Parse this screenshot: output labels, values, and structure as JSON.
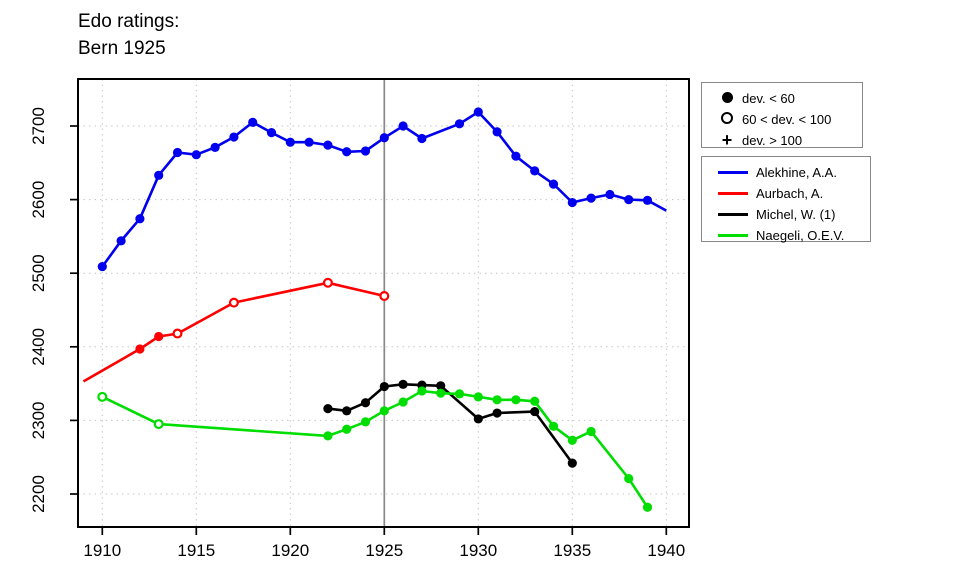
{
  "title_line1": "Edo ratings:",
  "title_line2": "Bern 1925",
  "legend_markers": {
    "items": [
      {
        "symbol": "filled-circle",
        "label": "dev. < 60"
      },
      {
        "symbol": "open-circle",
        "label": "60 < dev. < 100"
      },
      {
        "symbol": "plus",
        "label": "dev. > 100"
      }
    ]
  },
  "legend_players": {
    "items": [
      {
        "label": "Alekhine, A.A.",
        "color": "#0000ee"
      },
      {
        "label": "Aurbach, A.",
        "color": "#ff0000"
      },
      {
        "label": "Michel, W. (1)",
        "color": "#000000"
      },
      {
        "label": "Naegeli, O.E.V.",
        "color": "#00dd00"
      }
    ]
  },
  "chart_data": {
    "type": "line",
    "title": "Edo ratings: Bern 1925",
    "xlabel": "",
    "ylabel": "",
    "x_ticks": [
      1910,
      1915,
      1920,
      1925,
      1930,
      1935,
      1940
    ],
    "y_ticks": [
      2200,
      2300,
      2400,
      2500,
      2600,
      2700
    ],
    "xlim": [
      1908.7,
      1941.2
    ],
    "ylim": [
      2154,
      2763
    ],
    "grid": "dotted",
    "reference_vline_x": 1925,
    "vline_color": "#888888",
    "grid_color": "#c6c6c6",
    "marker_meaning": {
      "filled": "dev. < 60",
      "open": "60 < dev. < 100",
      "plus": "dev. > 100"
    },
    "series": [
      {
        "name": "Alekhine, A.A.",
        "color": "#0000ee",
        "points": [
          {
            "year": 1910,
            "rating": 2509,
            "marker": "filled"
          },
          {
            "year": 1911,
            "rating": 2544,
            "marker": "filled"
          },
          {
            "year": 1912,
            "rating": 2574,
            "marker": "filled"
          },
          {
            "year": 1913,
            "rating": 2633,
            "marker": "filled"
          },
          {
            "year": 1914,
            "rating": 2664,
            "marker": "filled"
          },
          {
            "year": 1915,
            "rating": 2661,
            "marker": "filled"
          },
          {
            "year": 1916,
            "rating": 2671,
            "marker": "filled"
          },
          {
            "year": 1917,
            "rating": 2685,
            "marker": "filled"
          },
          {
            "year": 1918,
            "rating": 2705,
            "marker": "filled"
          },
          {
            "year": 1919,
            "rating": 2691,
            "marker": "filled"
          },
          {
            "year": 1920,
            "rating": 2678,
            "marker": "filled"
          },
          {
            "year": 1921,
            "rating": 2678,
            "marker": "filled"
          },
          {
            "year": 1922,
            "rating": 2674,
            "marker": "filled"
          },
          {
            "year": 1923,
            "rating": 2665,
            "marker": "filled"
          },
          {
            "year": 1924,
            "rating": 2666,
            "marker": "filled"
          },
          {
            "year": 1925,
            "rating": 2684,
            "marker": "filled"
          },
          {
            "year": 1926,
            "rating": 2700,
            "marker": "filled"
          },
          {
            "year": 1927,
            "rating": 2683,
            "marker": "filled"
          },
          {
            "year": 1929,
            "rating": 2703,
            "marker": "filled"
          },
          {
            "year": 1930,
            "rating": 2719,
            "marker": "filled"
          },
          {
            "year": 1931,
            "rating": 2692,
            "marker": "filled"
          },
          {
            "year": 1932,
            "rating": 2659,
            "marker": "filled"
          },
          {
            "year": 1933,
            "rating": 2639,
            "marker": "filled"
          },
          {
            "year": 1934,
            "rating": 2621,
            "marker": "filled"
          },
          {
            "year": 1935,
            "rating": 2596,
            "marker": "filled"
          },
          {
            "year": 1936,
            "rating": 2602,
            "marker": "filled"
          },
          {
            "year": 1937,
            "rating": 2607,
            "marker": "filled"
          },
          {
            "year": 1938,
            "rating": 2600,
            "marker": "filled"
          },
          {
            "year": 1939,
            "rating": 2599,
            "marker": "filled"
          },
          {
            "year": 1940,
            "rating": 2585,
            "marker": "none"
          }
        ]
      },
      {
        "name": "Aurbach, A.",
        "color": "#ff0000",
        "points": [
          {
            "year": 1909,
            "rating": 2353,
            "marker": "none"
          },
          {
            "year": 1912,
            "rating": 2397,
            "marker": "filled"
          },
          {
            "year": 1913,
            "rating": 2414,
            "marker": "filled"
          },
          {
            "year": 1914,
            "rating": 2418,
            "marker": "open"
          },
          {
            "year": 1917,
            "rating": 2460,
            "marker": "open"
          },
          {
            "year": 1922,
            "rating": 2487,
            "marker": "open"
          },
          {
            "year": 1925,
            "rating": 2469,
            "marker": "open"
          }
        ]
      },
      {
        "name": "Michel, W. (1)",
        "color": "#000000",
        "points": [
          {
            "year": 1922,
            "rating": 2316,
            "marker": "filled"
          },
          {
            "year": 1923,
            "rating": 2313,
            "marker": "filled"
          },
          {
            "year": 1924,
            "rating": 2324,
            "marker": "filled"
          },
          {
            "year": 1925,
            "rating": 2346,
            "marker": "filled"
          },
          {
            "year": 1926,
            "rating": 2349,
            "marker": "filled"
          },
          {
            "year": 1927,
            "rating": 2348,
            "marker": "filled"
          },
          {
            "year": 1928,
            "rating": 2347,
            "marker": "filled"
          },
          {
            "year": 1930,
            "rating": 2302,
            "marker": "filled"
          },
          {
            "year": 1931,
            "rating": 2310,
            "marker": "filled"
          },
          {
            "year": 1933,
            "rating": 2312,
            "marker": "filled"
          },
          {
            "year": 1935,
            "rating": 2242,
            "marker": "filled"
          }
        ]
      },
      {
        "name": "Naegeli, O.E.V.",
        "color": "#00dd00",
        "points": [
          {
            "year": 1910,
            "rating": 2332,
            "marker": "open"
          },
          {
            "year": 1913,
            "rating": 2295,
            "marker": "open"
          },
          {
            "year": 1922,
            "rating": 2279,
            "marker": "filled"
          },
          {
            "year": 1923,
            "rating": 2288,
            "marker": "filled"
          },
          {
            "year": 1924,
            "rating": 2298,
            "marker": "filled"
          },
          {
            "year": 1925,
            "rating": 2313,
            "marker": "filled"
          },
          {
            "year": 1926,
            "rating": 2325,
            "marker": "filled"
          },
          {
            "year": 1927,
            "rating": 2340,
            "marker": "filled"
          },
          {
            "year": 1928,
            "rating": 2337,
            "marker": "filled"
          },
          {
            "year": 1929,
            "rating": 2336,
            "marker": "filled"
          },
          {
            "year": 1930,
            "rating": 2332,
            "marker": "filled"
          },
          {
            "year": 1931,
            "rating": 2328,
            "marker": "filled"
          },
          {
            "year": 1932,
            "rating": 2328,
            "marker": "filled"
          },
          {
            "year": 1933,
            "rating": 2326,
            "marker": "filled"
          },
          {
            "year": 1934,
            "rating": 2292,
            "marker": "filled"
          },
          {
            "year": 1935,
            "rating": 2273,
            "marker": "filled"
          },
          {
            "year": 1936,
            "rating": 2285,
            "marker": "filled"
          },
          {
            "year": 1938,
            "rating": 2221,
            "marker": "filled"
          },
          {
            "year": 1939,
            "rating": 2182,
            "marker": "filled"
          }
        ]
      }
    ]
  }
}
